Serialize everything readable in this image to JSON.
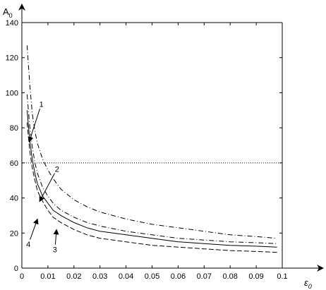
{
  "chart_data": {
    "type": "line",
    "xlabel": "ε",
    "xlabel_sub": "0",
    "ylabel": "A",
    "ylabel_sub": "0",
    "xlim": [
      0,
      0.1
    ],
    "ylim": [
      0,
      140
    ],
    "x_ticks": [
      0,
      0.01,
      0.02,
      0.03,
      0.04,
      0.05,
      0.06,
      0.07,
      0.08,
      0.09,
      0.1
    ],
    "x_tick_labels": [
      "0",
      "0.01",
      "0.02",
      "0.03",
      "0.04",
      "0.05",
      "0.06",
      "0.07",
      "0.08",
      "0.09",
      "0.1"
    ],
    "y_ticks": [
      0,
      20,
      40,
      60,
      80,
      100,
      120,
      140
    ],
    "y_tick_labels": [
      "0",
      "20",
      "40",
      "60",
      "80",
      "100",
      "120",
      "140"
    ],
    "reference_line_y": 60,
    "series": [
      {
        "label": "1",
        "style": "dash-dot",
        "x": [
          0.002,
          0.003,
          0.004,
          0.005,
          0.006,
          0.008,
          0.01,
          0.012,
          0.015,
          0.02,
          0.025,
          0.03,
          0.04,
          0.05,
          0.06,
          0.07,
          0.08,
          0.09,
          0.098
        ],
        "y": [
          127,
          105,
          88,
          78,
          71,
          62,
          56,
          51,
          45,
          39,
          35,
          32,
          28,
          25,
          23,
          21,
          19,
          18,
          17
        ]
      },
      {
        "label": "2",
        "style": "dash-dot",
        "x": [
          0.002,
          0.003,
          0.004,
          0.005,
          0.006,
          0.008,
          0.01,
          0.012,
          0.015,
          0.02,
          0.025,
          0.03,
          0.04,
          0.05,
          0.06,
          0.07,
          0.08,
          0.09,
          0.098
        ],
        "y": [
          99,
          81,
          69,
          60,
          54,
          46,
          41,
          37,
          33,
          29,
          26,
          24,
          21,
          19,
          17,
          16,
          15,
          14.5,
          14
        ]
      },
      {
        "label": "3",
        "style": "solid",
        "x": [
          0.002,
          0.003,
          0.004,
          0.005,
          0.006,
          0.008,
          0.01,
          0.012,
          0.015,
          0.02,
          0.025,
          0.03,
          0.04,
          0.05,
          0.06,
          0.07,
          0.08,
          0.09,
          0.098
        ],
        "y": [
          90,
          73,
          62,
          54,
          48,
          41,
          37,
          33,
          30,
          26,
          23,
          21,
          19,
          17,
          15,
          14,
          13,
          12.5,
          12
        ]
      },
      {
        "label": "4",
        "style": "dashed",
        "x": [
          0.002,
          0.003,
          0.004,
          0.005,
          0.006,
          0.008,
          0.01,
          0.012,
          0.015,
          0.02,
          0.025,
          0.03,
          0.04,
          0.05,
          0.06,
          0.07,
          0.08,
          0.09,
          0.098
        ],
        "y": [
          83,
          67,
          57,
          50,
          44,
          38,
          33,
          29,
          26,
          22,
          19,
          17,
          15,
          13,
          12,
          11,
          10,
          9.5,
          9
        ]
      }
    ],
    "annotations": [
      {
        "text": "1",
        "x": 0.0075,
        "y": 92,
        "arrow_to": [
          0.0028,
          72
        ]
      },
      {
        "text": "2",
        "x": 0.0135,
        "y": 55,
        "arrow_to": [
          0.0068,
          38
        ]
      },
      {
        "text": "3",
        "x": 0.0127,
        "y": 9,
        "arrow_to": [
          0.0133,
          22
        ]
      },
      {
        "text": "4",
        "x": 0.0025,
        "y": 12,
        "arrow_to": [
          0.006,
          28
        ]
      }
    ]
  }
}
